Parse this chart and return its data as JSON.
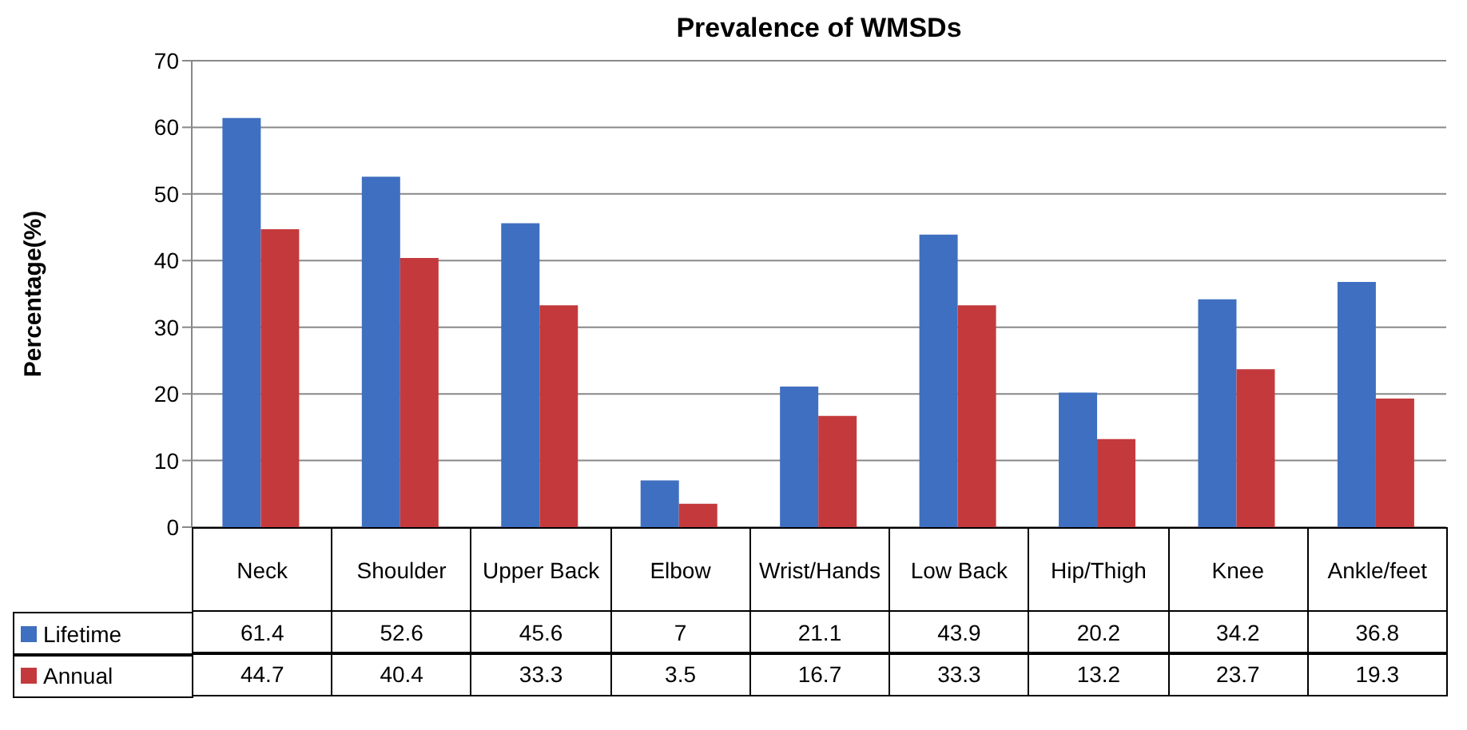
{
  "chart_data": {
    "type": "bar",
    "title": "Prevalence of WMSDs",
    "ylabel": "Percentage(%)",
    "categories": [
      "Neck",
      "Shoulder",
      "Upper Back",
      "Elbow",
      "Wrist/Hands",
      "Low Back",
      "Hip/Thigh",
      "Knee",
      "Ankle/feet"
    ],
    "series": [
      {
        "name": "Lifetime",
        "color": "#3f6fc0",
        "values": [
          61.4,
          52.6,
          45.6,
          7,
          21.1,
          43.9,
          20.2,
          34.2,
          36.8
        ]
      },
      {
        "name": "Annual",
        "color": "#c43a3c",
        "values": [
          44.7,
          40.4,
          33.3,
          3.5,
          16.7,
          33.3,
          13.2,
          23.7,
          19.3
        ]
      }
    ],
    "ylim": [
      0,
      70
    ],
    "yticks": [
      0,
      10,
      20,
      30,
      40,
      50,
      60,
      70
    ],
    "grid": "y",
    "legend": "bottom",
    "data_labels": true
  }
}
